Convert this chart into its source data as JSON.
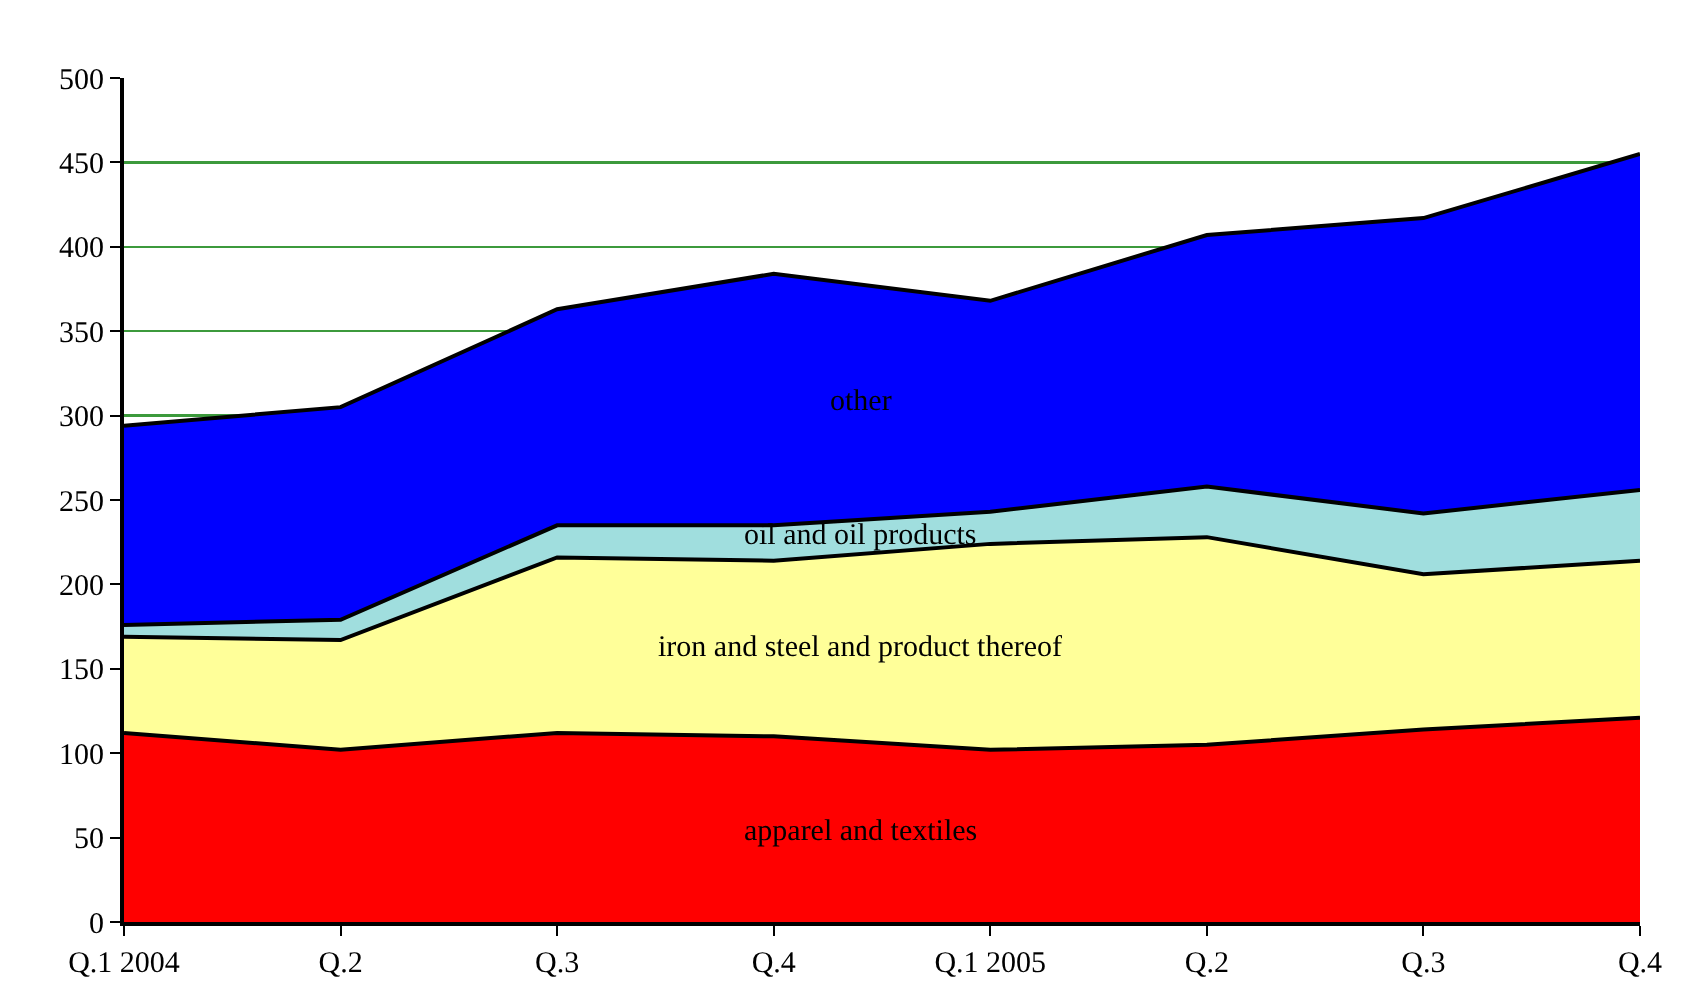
{
  "chart_data": {
    "type": "area",
    "stacked": true,
    "categories": [
      "Q.1 2004",
      "Q.2",
      "Q.3",
      "Q.4",
      "Q.1 2005",
      "Q.2",
      "Q.3",
      "Q.4"
    ],
    "series": [
      {
        "name": "apparel and textiles",
        "color": "#ff0000",
        "values": [
          112,
          102,
          112,
          110,
          102,
          105,
          114,
          121
        ]
      },
      {
        "name": "iron and steel and product thereof",
        "color": "#ffff99",
        "values": [
          57,
          65,
          104,
          104,
          122,
          123,
          92,
          93
        ]
      },
      {
        "name": "oil and oil products",
        "color": "#a0dede",
        "values": [
          7,
          12,
          19,
          21,
          19,
          30,
          36,
          42
        ]
      },
      {
        "name": "other",
        "color": "#0000ff",
        "values": [
          118,
          126,
          128,
          149,
          125,
          149,
          175,
          199
        ]
      }
    ],
    "ylim": [
      0,
      500
    ],
    "yticks": [
      0,
      50,
      100,
      150,
      200,
      250,
      300,
      350,
      400,
      450,
      500
    ],
    "grid": "y",
    "legend": false
  }
}
